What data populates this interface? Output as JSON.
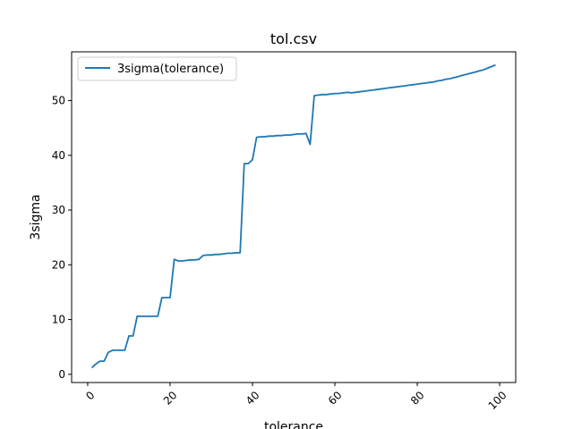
{
  "chart_data": {
    "type": "line",
    "title": "tol.csv",
    "xlabel": "tolerance",
    "ylabel": "3sigma",
    "xlim": [
      -3.9,
      103.9
    ],
    "ylim": [
      -1.5,
      58.9
    ],
    "xticks": [
      0,
      20,
      40,
      60,
      80,
      100
    ],
    "yticks": [
      0,
      10,
      20,
      30,
      40,
      50
    ],
    "grid": false,
    "legend_position": "upper left",
    "series": [
      {
        "name": "3sigma(tolerance)",
        "color": "#1f77b4",
        "x": [
          1,
          2,
          3,
          4,
          5,
          6,
          7,
          8,
          9,
          10,
          11,
          12,
          13,
          14,
          15,
          16,
          17,
          18,
          19,
          20,
          21,
          22,
          23,
          24,
          25,
          26,
          27,
          28,
          29,
          30,
          31,
          32,
          33,
          34,
          35,
          36,
          37,
          38,
          39,
          40,
          41,
          42,
          43,
          44,
          45,
          46,
          47,
          48,
          49,
          50,
          51,
          52,
          53,
          54,
          55,
          56,
          57,
          58,
          59,
          60,
          61,
          62,
          63,
          64,
          65,
          66,
          67,
          68,
          69,
          70,
          71,
          72,
          73,
          74,
          75,
          76,
          77,
          78,
          79,
          80,
          81,
          82,
          83,
          84,
          85,
          86,
          87,
          88,
          89,
          90,
          91,
          92,
          93,
          94,
          95,
          96,
          97,
          98,
          99
        ],
        "values": [
          1.2,
          1.9,
          2.4,
          2.4,
          4.0,
          4.4,
          4.4,
          4.4,
          4.4,
          7.0,
          7.0,
          10.6,
          10.6,
          10.6,
          10.6,
          10.6,
          10.6,
          14.0,
          14.0,
          14.0,
          21.0,
          20.7,
          20.7,
          20.8,
          20.9,
          20.9,
          21.0,
          21.7,
          21.8,
          21.8,
          21.9,
          21.9,
          22.0,
          22.1,
          22.1,
          22.2,
          22.2,
          38.5,
          38.5,
          39.2,
          43.3,
          43.4,
          43.4,
          43.5,
          43.5,
          43.6,
          43.6,
          43.7,
          43.7,
          43.8,
          43.9,
          43.9,
          44.0,
          42.0,
          50.9,
          51.0,
          51.1,
          51.1,
          51.2,
          51.3,
          51.3,
          51.4,
          51.5,
          51.4,
          51.5,
          51.6,
          51.7,
          51.8,
          51.9,
          52.0,
          52.1,
          52.2,
          52.3,
          52.4,
          52.5,
          52.6,
          52.7,
          52.8,
          52.9,
          53.0,
          53.1,
          53.2,
          53.3,
          53.4,
          53.6,
          53.7,
          53.9,
          54.0,
          54.2,
          54.4,
          54.6,
          54.8,
          55.0,
          55.2,
          55.4,
          55.6,
          55.9,
          56.2,
          56.5
        ]
      }
    ]
  }
}
